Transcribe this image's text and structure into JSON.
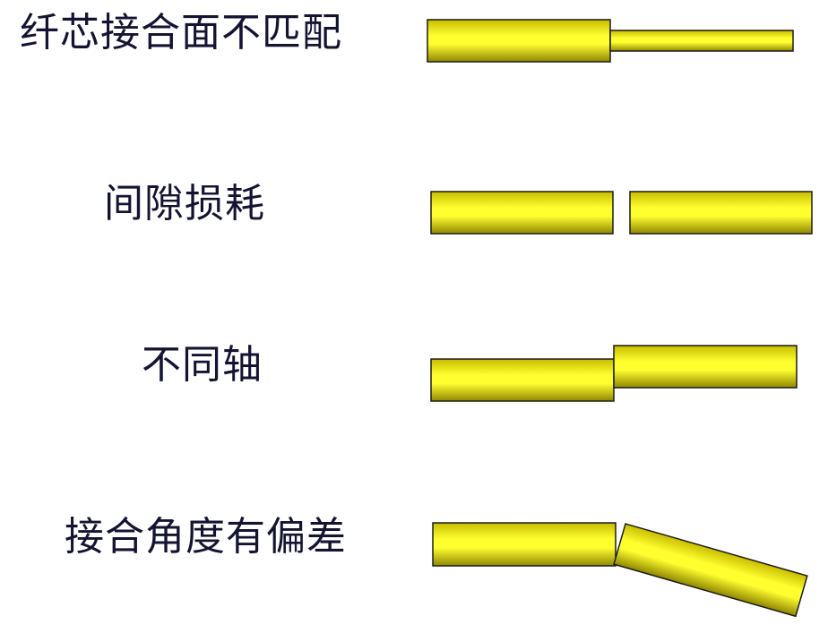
{
  "rows": [
    {
      "label": "纤芯接合面不匹配"
    },
    {
      "label": "间隙损耗"
    },
    {
      "label": "不同轴"
    },
    {
      "label": "接合角度有偏差"
    }
  ],
  "colors": {
    "fiber_fill_light": "#ffff33",
    "fiber_fill_dark": "#9a8f00",
    "fiber_stroke": "#1a1a1a",
    "label_text": "#141432"
  }
}
